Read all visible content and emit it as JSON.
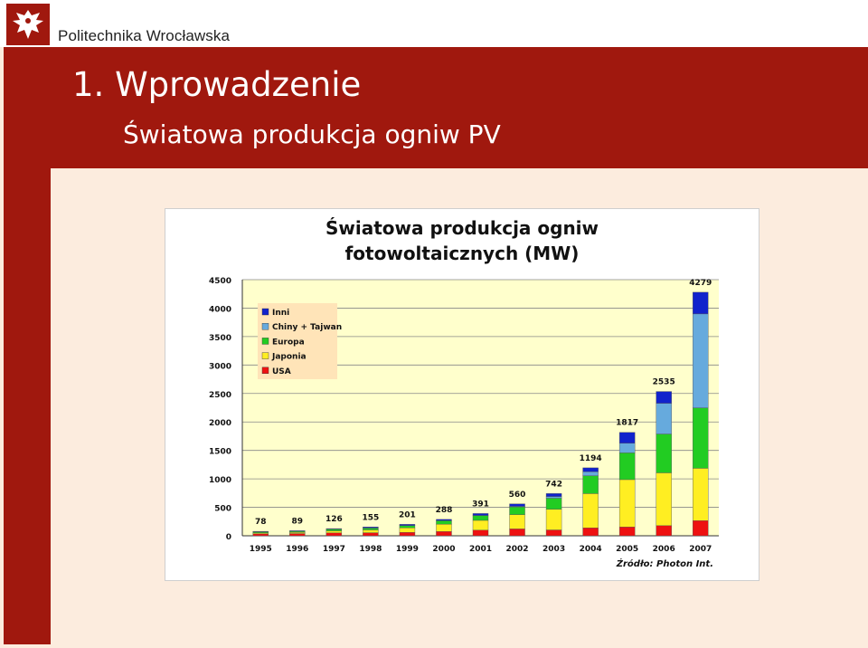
{
  "header": {
    "university_name": "Politechnika Wrocławska",
    "title": "1. Wprowadzenie",
    "subtitle": "Światowa produkcja ogniw PV"
  },
  "colors": {
    "brand_red": "#a0180e",
    "slide_background": "#fcecde",
    "plot_background": "#ffffcc",
    "legend_background": "#ffe4b8"
  },
  "chart_data": {
    "type": "bar",
    "stacked": true,
    "title_line1": "Światowa produkcja ogniw",
    "title_line2": "fotowoltaicznych (MW)",
    "categories": [
      "1995",
      "1996",
      "1997",
      "1998",
      "1999",
      "2000",
      "2001",
      "2002",
      "2003",
      "2004",
      "2005",
      "2006",
      "2007"
    ],
    "totals": [
      78,
      89,
      126,
      155,
      201,
      288,
      391,
      560,
      742,
      1194,
      1817,
      2535,
      4279
    ],
    "series": [
      {
        "name": "USA",
        "color": "#ee1111",
        "values": [
          34,
          39,
          51,
          54,
          60,
          75,
          100,
          121,
          103,
          139,
          154,
          178,
          266
        ]
      },
      {
        "name": "Japonia",
        "color": "#ffee22",
        "values": [
          16,
          21,
          35,
          49,
          80,
          129,
          171,
          251,
          364,
          602,
          833,
          928,
          920
        ]
      },
      {
        "name": "Europa",
        "color": "#22cc22",
        "values": [
          20,
          19,
          30,
          33,
          40,
          61,
          86,
          135,
          193,
          314,
          470,
          682,
          1062
        ]
      },
      {
        "name": "Chiny + Tajwan",
        "color": "#66aadd",
        "values": [
          0,
          0,
          0,
          0,
          0,
          0,
          0,
          10,
          30,
          70,
          170,
          540,
          1650
        ]
      },
      {
        "name": "Inni",
        "color": "#1122cc",
        "values": [
          8,
          10,
          10,
          19,
          21,
          23,
          34,
          43,
          52,
          69,
          190,
          207,
          381
        ]
      }
    ],
    "legend_order": [
      "Inni",
      "Chiny + Tajwan",
      "Europa",
      "Japonia",
      "USA"
    ],
    "yticks": [
      0,
      500,
      1000,
      1500,
      2000,
      2500,
      3000,
      3500,
      4000,
      4500
    ],
    "ylim": [
      0,
      4500
    ],
    "grid": true,
    "legend_position": "top-left",
    "source_note": "Źródło: Photon Int."
  }
}
